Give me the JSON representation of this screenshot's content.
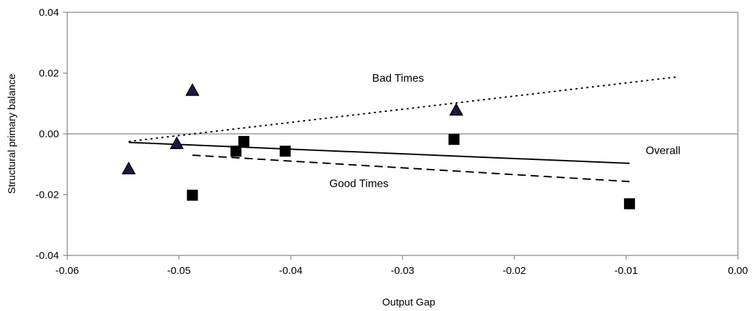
{
  "chart_data": {
    "type": "scatter",
    "title": "",
    "xlabel": "Output Gap",
    "ylabel": "Structural primary balance",
    "xlim": [
      -0.06,
      0.0
    ],
    "ylim": [
      -0.04,
      0.04
    ],
    "xticks": [
      "-0.06",
      "-0.05",
      "-0.04",
      "-0.03",
      "-0.02",
      "-0.01",
      "0.00"
    ],
    "yticks": [
      "0.04",
      "0.02",
      "0.00",
      "-0.02",
      "-0.04"
    ],
    "grid": false,
    "legend": "none",
    "colors": {
      "markers": "#000000",
      "triangle_fill": "#1a1a40",
      "axes": "#808080"
    },
    "series": [
      {
        "name": "Bad Times",
        "marker": "triangle",
        "points": [
          [
            -0.0545,
            -0.0115
          ],
          [
            -0.0502,
            -0.0032
          ],
          [
            -0.0488,
            0.0143
          ],
          [
            -0.0252,
            0.0078
          ]
        ]
      },
      {
        "name": "Good Times",
        "marker": "square",
        "points": [
          [
            -0.0488,
            -0.0202
          ],
          [
            -0.0449,
            -0.0057
          ],
          [
            -0.0442,
            -0.0025
          ],
          [
            -0.0405,
            -0.0057
          ],
          [
            -0.0254,
            -0.0018
          ],
          [
            -0.0097,
            -0.023
          ]
        ]
      }
    ],
    "trendlines": [
      {
        "name": "Bad Times",
        "style": "dotted",
        "x": [
          -0.0545,
          -0.0053
        ],
        "y": [
          -0.0025,
          0.0188
        ]
      },
      {
        "name": "Overall",
        "style": "solid",
        "x": [
          -0.0545,
          -0.0097
        ],
        "y": [
          -0.0028,
          -0.0097
        ]
      },
      {
        "name": "Good Times",
        "style": "dashed",
        "x": [
          -0.0488,
          -0.0097
        ],
        "y": [
          -0.007,
          -0.0157
        ]
      }
    ],
    "annotations": [
      {
        "text": "Bad Times",
        "x": -0.0304,
        "y": 0.0172
      },
      {
        "text": "Overall",
        "x": -0.0067,
        "y": -0.0067
      },
      {
        "text": "Good Times",
        "x": -0.0339,
        "y": -0.0175
      }
    ]
  }
}
